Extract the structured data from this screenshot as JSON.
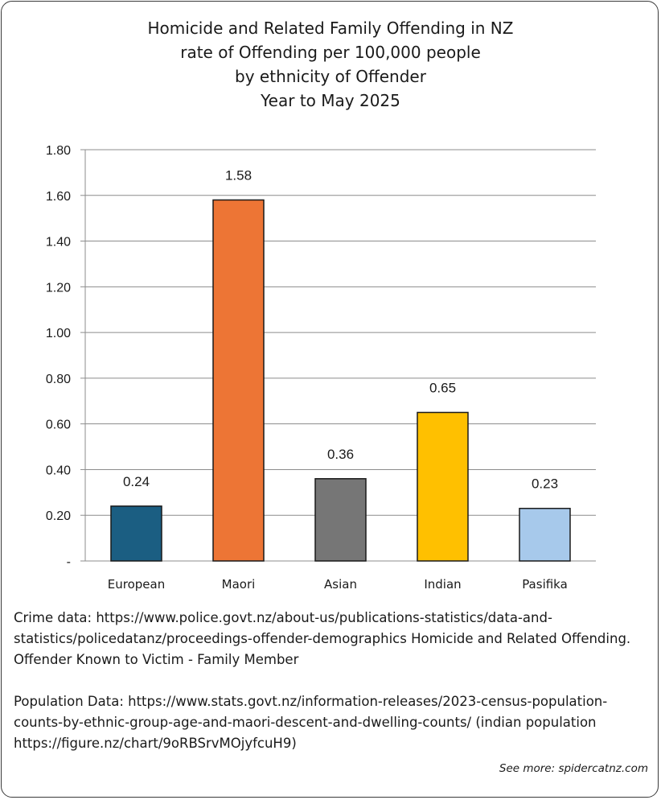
{
  "chart_data": {
    "type": "bar",
    "title_lines": [
      "Homicide and Related Family Offending in NZ",
      "rate of Offending per 100,000 people",
      "by ethnicity of Offender",
      "Year to May 2025"
    ],
    "categories": [
      "European",
      "Maori",
      "Asian",
      "Indian",
      "Pasifika"
    ],
    "values": [
      0.24,
      1.58,
      0.36,
      0.65,
      0.23
    ],
    "data_labels": [
      "0.24",
      "1.58",
      "0.36",
      "0.65",
      "0.23"
    ],
    "colors": [
      "#1b5e82",
      "#ed7535",
      "#767676",
      "#ffc000",
      "#a7c9eb"
    ],
    "ylim": [
      0,
      1.8
    ],
    "yticks": [
      0,
      0.2,
      0.4,
      0.6,
      0.8,
      1.0,
      1.2,
      1.4,
      1.6,
      1.8
    ],
    "ytick_labels": [
      "-",
      "0.20",
      "0.40",
      "0.60",
      "0.80",
      "1.00",
      "1.20",
      "1.40",
      "1.60",
      "1.80"
    ],
    "grid": true,
    "legend": "none"
  },
  "notes": {
    "crime_data": "Crime data: https://www.police.govt.nz/about-us/publications-statistics/data-and-statistics/policedatanz/proceedings-offender-demographics Homicide and Related Offending. Offender Known to Victim - Family Member",
    "population_data": "Population Data: https://www.stats.govt.nz/information-releases/2023-census-population-counts-by-ethnic-group-age-and-maori-descent-and-dwelling-counts/ (indian population https://figure.nz/chart/9oRBSrvMOjyfcuH9)"
  },
  "credit": "See more: spidercatnz.com"
}
